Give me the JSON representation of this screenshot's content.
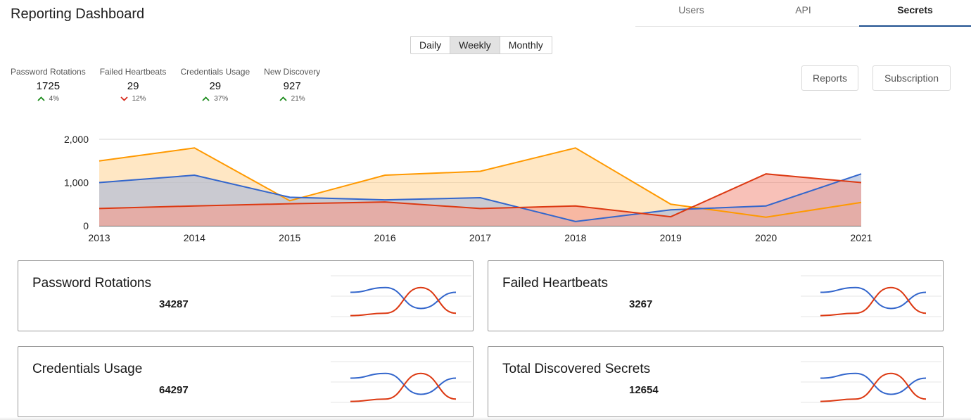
{
  "header": {
    "title": "Reporting Dashboard"
  },
  "tabs": [
    {
      "label": "Users",
      "active": false
    },
    {
      "label": "API",
      "active": false
    },
    {
      "label": "Secrets",
      "active": true
    }
  ],
  "period_toggle": {
    "options": [
      "Daily",
      "Weekly",
      "Monthly"
    ],
    "selected": "Weekly"
  },
  "kpis": [
    {
      "label": "Password Rotations",
      "value": "1725",
      "change": "4%",
      "direction": "up"
    },
    {
      "label": "Failed Heartbeats",
      "value": "29",
      "change": "12%",
      "direction": "down"
    },
    {
      "label": "Credentials Usage",
      "value": "29",
      "change": "37%",
      "direction": "up"
    },
    {
      "label": "New Discovery",
      "value": "927",
      "change": "21%",
      "direction": "up"
    }
  ],
  "actions": {
    "reports_label": "Reports",
    "subscription_label": "Subscription"
  },
  "colors": {
    "up": "#1a8a1a",
    "down": "#d62a1c",
    "accent": "#1e4f8f"
  },
  "chart_data": {
    "type": "area",
    "x": [
      2013,
      2014,
      2015,
      2016,
      2017,
      2018,
      2019,
      2020,
      2021
    ],
    "ylim": [
      0,
      2000
    ],
    "yticks": [
      "0",
      "1,000",
      "2,000"
    ],
    "grid": true,
    "series": [
      {
        "color": "#ff9900",
        "fill": "#ffd9a0",
        "values": [
          1500,
          1800,
          580,
          1170,
          1260,
          1800,
          500,
          200,
          540
        ]
      },
      {
        "color": "#3366cc",
        "fill": "#a9b8d9",
        "values": [
          1000,
          1170,
          660,
          600,
          650,
          100,
          370,
          460,
          1200
        ]
      },
      {
        "color": "#dc3912",
        "fill": "#f39b8c",
        "values": [
          400,
          460,
          510,
          550,
          400,
          460,
          210,
          1200,
          1000
        ]
      }
    ]
  },
  "cards": [
    {
      "title": "Password Rotations",
      "value": "34287"
    },
    {
      "title": "Failed Heartbeats",
      "value": "3267"
    },
    {
      "title": "Credentials Usage",
      "value": "64297"
    },
    {
      "title": "Total Discovered Secrets",
      "value": "12654"
    }
  ],
  "sparkline": {
    "series": [
      {
        "color": "#3366cc",
        "values": [
          3,
          4,
          0.5,
          3
        ]
      },
      {
        "color": "#dc3912",
        "values": [
          -1,
          -0.5,
          4,
          -0.5
        ]
      }
    ]
  }
}
